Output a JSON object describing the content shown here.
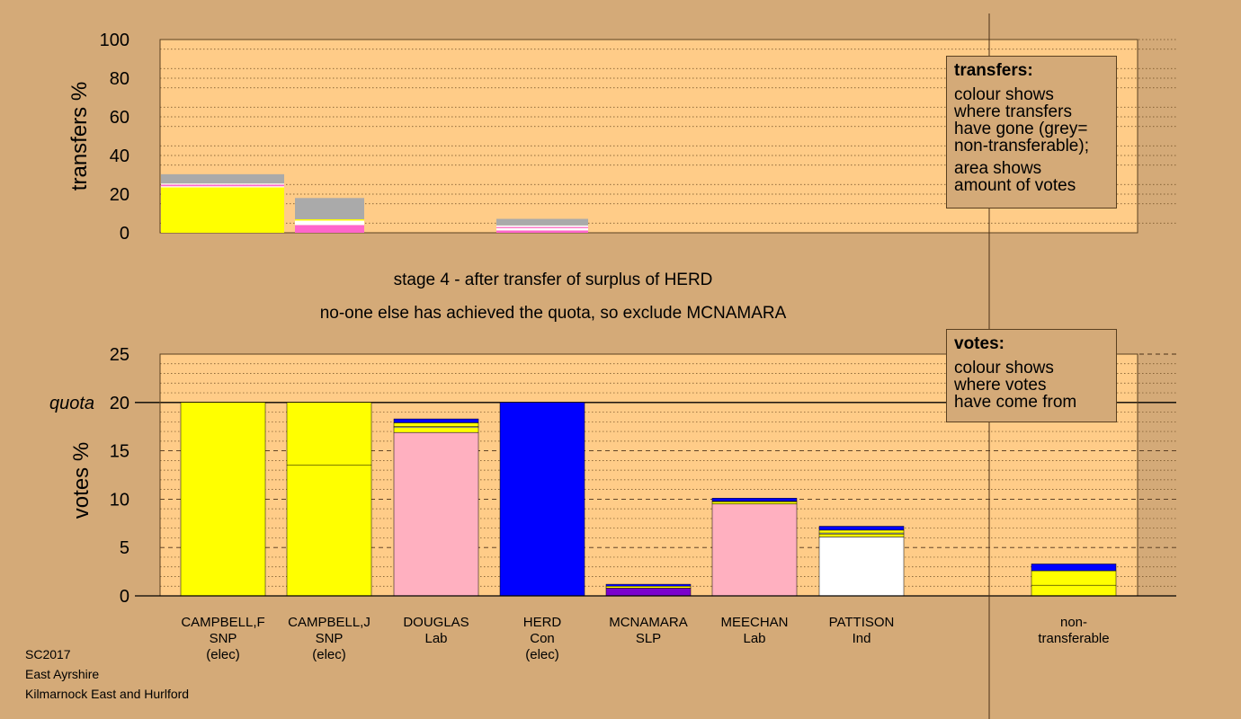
{
  "chart_data": [
    {
      "type": "bar",
      "stacked": true,
      "ylabel": "transfers %",
      "ylim": [
        0,
        100
      ],
      "yticks": [
        0,
        20,
        40,
        60,
        80,
        100
      ],
      "grid": "dotted horizontal",
      "columns": [
        {
          "candidate": "CAMPBELL,F",
          "segments": [
            {
              "color": "#ffff00",
              "value": 23.5
            },
            {
              "color": "#ffffff",
              "value": 0.6
            },
            {
              "color": "#ff66cc",
              "value": 0.8
            },
            {
              "color": "#ffffff",
              "value": 0.6
            },
            {
              "color": "#aaaaaa",
              "value": 4.8
            }
          ]
        },
        {
          "candidate": "CAMPBELL,J",
          "segments": [
            {
              "color": "#ff66cc",
              "value": 4.0
            },
            {
              "color": "#ffffff",
              "value": 2.3
            },
            {
              "color": "#ffff00",
              "value": 0.7
            },
            {
              "color": "#aaaaaa",
              "value": 11.0
            }
          ]
        },
        {
          "candidate": "DOUGLAS",
          "segments": []
        },
        {
          "candidate": "HERD",
          "segments": [
            {
              "color": "#ff66cc",
              "value": 1.2
            },
            {
              "color": "#ffffff",
              "value": 1.2
            },
            {
              "color": "#ff66cc",
              "value": 0.6
            },
            {
              "color": "#ffffff",
              "value": 0.8
            },
            {
              "color": "#aaaaaa",
              "value": 3.4
            }
          ]
        }
      ]
    },
    {
      "type": "bar",
      "stacked": true,
      "ylabel": "votes %",
      "ylim": [
        0,
        25
      ],
      "yticks": [
        0,
        5,
        10,
        15,
        20,
        25
      ],
      "quota": 20,
      "quota_label": "quota",
      "grid": "dotted/dashed horizontal",
      "categories": [
        {
          "name": "CAMPBELL,F",
          "party": "SNP",
          "status": "(elec)",
          "segments": [
            {
              "color": "#ffff00",
              "value": 20.0
            }
          ]
        },
        {
          "name": "CAMPBELL,J",
          "party": "SNP",
          "status": "(elec)",
          "segments": [
            {
              "color": "#ffff00",
              "value": 13.5
            },
            {
              "color": "#ffff00",
              "value": 6.5
            }
          ]
        },
        {
          "name": "DOUGLAS",
          "party": "Lab",
          "status": "",
          "segments": [
            {
              "color": "#ffb0c0",
              "value": 16.9
            },
            {
              "color": "#ffff00",
              "value": 0.5
            },
            {
              "color": "#ffffff",
              "value": 0.1
            },
            {
              "color": "#ffff00",
              "value": 0.4
            },
            {
              "color": "#0000ff",
              "value": 0.4
            }
          ]
        },
        {
          "name": "HERD",
          "party": "Con",
          "status": "(elec)",
          "segments": [
            {
              "color": "#0000ff",
              "value": 20.0
            }
          ]
        },
        {
          "name": "MCNAMARA",
          "party": "SLP",
          "status": "",
          "segments": [
            {
              "color": "#7a00cc",
              "value": 0.8
            },
            {
              "color": "#ffff00",
              "value": 0.2
            },
            {
              "color": "#0000ff",
              "value": 0.2
            }
          ]
        },
        {
          "name": "MEECHAN",
          "party": "Lab",
          "status": "",
          "segments": [
            {
              "color": "#ffb0c0",
              "value": 9.5
            },
            {
              "color": "#ffff00",
              "value": 0.25
            },
            {
              "color": "#ffffff",
              "value": 0.05
            },
            {
              "color": "#0000ff",
              "value": 0.3
            }
          ]
        },
        {
          "name": "PATTISON",
          "party": "Ind",
          "status": "",
          "segments": [
            {
              "color": "#ffffff",
              "value": 6.1
            },
            {
              "color": "#ffff00",
              "value": 0.3
            },
            {
              "color": "#ffffff",
              "value": 0.1
            },
            {
              "color": "#ffff00",
              "value": 0.3
            },
            {
              "color": "#0000ff",
              "value": 0.4
            }
          ]
        },
        {
          "name": "non-",
          "party": "transferable",
          "status": "",
          "segments": [
            {
              "color": "#ffff00",
              "value": 1.1
            },
            {
              "color": "#ffff00",
              "value": 1.5
            },
            {
              "color": "#0000ff",
              "value": 0.7
            }
          ]
        }
      ]
    }
  ],
  "legend_transfers": {
    "title": "transfers:",
    "line1": "colour shows",
    "line2": "where transfers",
    "line3": "have gone (grey=",
    "line4": "non-transferable);",
    "line5": "area shows",
    "line6": "amount of votes"
  },
  "legend_votes": {
    "title": "votes:",
    "line1": "colour shows",
    "line2": "where votes",
    "line3": "have come from"
  },
  "stage": {
    "line1": "stage 4 - after transfer of surplus of HERD",
    "line2": "no-one else has achieved the quota, so exclude MCNAMARA"
  },
  "footer": {
    "election": "SC2017",
    "council": "East Ayrshire",
    "ward": "Kilmarnock East and Hurlford"
  },
  "colors": {
    "background": "#d4aa78",
    "plot_background": "#ffcc88"
  }
}
